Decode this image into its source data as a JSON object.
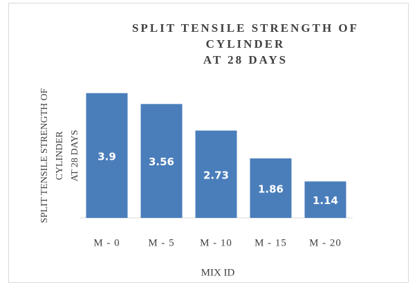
{
  "chart_data": {
    "type": "bar",
    "title": [
      "SPLIT TENSILE STRENGTH OF",
      "CYLINDER",
      "AT 28 DAYS"
    ],
    "y_label": [
      "SPLIT TENSILE STRENGTH OF",
      "CYLINDER",
      "AT 28 DAYS"
    ],
    "x_label": "MIX ID",
    "categories": [
      "M - 0",
      "M - 5",
      "M - 10",
      "M - 15",
      "M - 20"
    ],
    "values": [
      3.9,
      3.56,
      2.73,
      1.86,
      1.14
    ],
    "color": "#4a7ebb",
    "ylim": [
      0,
      4
    ]
  }
}
